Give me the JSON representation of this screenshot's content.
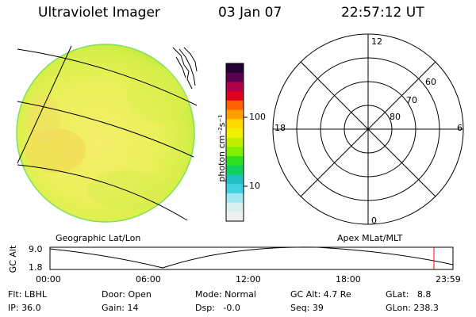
{
  "header": {
    "instrument": "Ultraviolet Imager",
    "date": "03 Jan 07",
    "time": "22:57:12 UT"
  },
  "colorbar": {
    "unit_label": "photon cm⁻²s⁻¹",
    "ticks": [
      "100",
      "10"
    ],
    "colors_top_to_bottom": [
      "#220033",
      "#5a0050",
      "#b0004a",
      "#e00020",
      "#ff6000",
      "#ffa000",
      "#ffd800",
      "#f0f000",
      "#c0f000",
      "#80f000",
      "#30e020",
      "#10d060",
      "#20c0c0",
      "#40d0e0",
      "#a0e8f0",
      "#d8f0f0",
      "#f0f0f0"
    ]
  },
  "polar": {
    "mlt_labels": [
      "12",
      "18",
      "6",
      "0"
    ],
    "lat_labels": [
      "60",
      "70",
      "80"
    ]
  },
  "projection_labels": {
    "left": "Geographic Lat/Lon",
    "right": "Apex MLat/MLT"
  },
  "altitude_plot": {
    "ylabel": "GC Alt",
    "yticks": [
      "9.0",
      "1.8"
    ],
    "xticks": [
      "00:00",
      "06:00",
      "12:00",
      "18:00",
      "23:59"
    ],
    "marker_color": "#ff0000"
  },
  "info": {
    "flt": "Flt: LBHL",
    "ip": "IP: 36.0",
    "door": "Door: Open",
    "gain": "Gain: 14",
    "mode": "Mode: Normal",
    "dsp": "Dsp:   -0.0",
    "gcalt": "GC Alt: 4.7 Re",
    "seq": "Seq: 39",
    "glat": "GLat:   8.8",
    "glon": "GLon: 238.3"
  }
}
